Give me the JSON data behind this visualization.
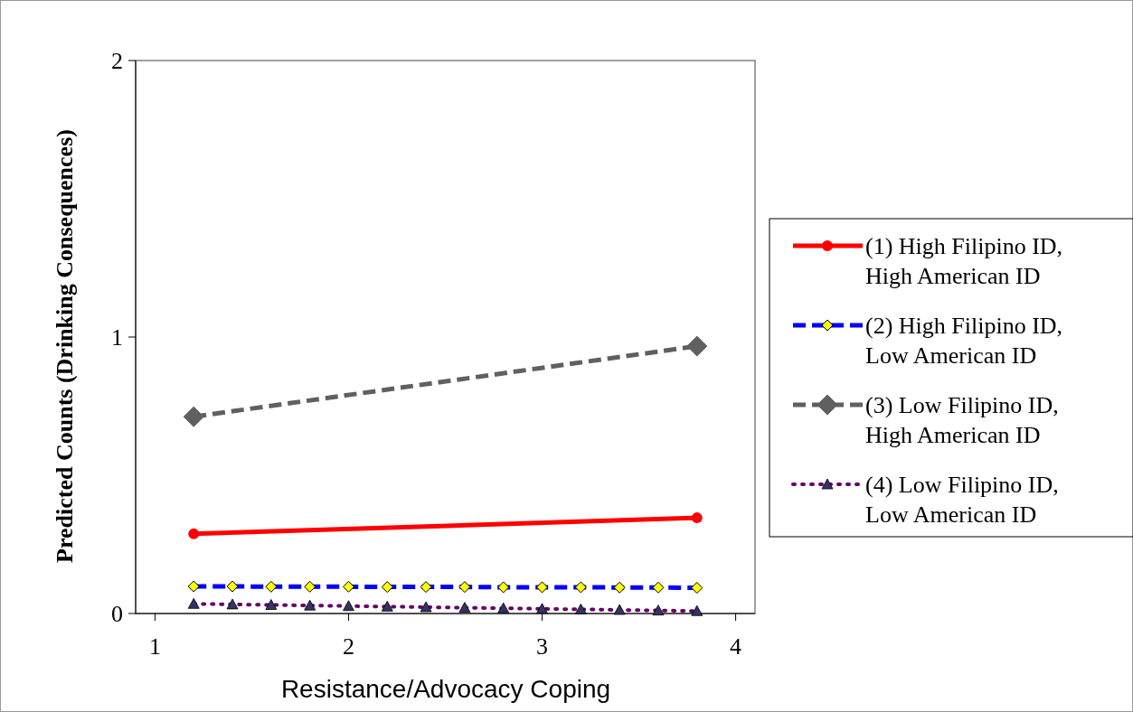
{
  "chart_data": {
    "type": "line",
    "xlabel": "Resistance/Advocacy Coping",
    "ylabel": "Predicted Counts (Drinking Consequences)",
    "xlim": [
      0.9,
      4.1
    ],
    "xticks": [
      1,
      2,
      3,
      4
    ],
    "ylim": [
      0,
      2
    ],
    "yticks": [
      0,
      1,
      2
    ],
    "grid": false,
    "legend": "right",
    "series": [
      {
        "name": "(1) High Filipino ID, High American ID",
        "color": "#ff0000",
        "marker": "circle",
        "line_style": "solid",
        "x": [
          1.2,
          3.8
        ],
        "values": [
          0.288,
          0.346
        ]
      },
      {
        "name": "(2) High Filipino ID, Low American ID",
        "color": "#0000ff",
        "marker": "diamond",
        "line_style": "dashed",
        "x": [
          1.2,
          1.4,
          1.6,
          1.8,
          2.0,
          2.2,
          2.4,
          2.6,
          2.8,
          3.0,
          3.2,
          3.4,
          3.6,
          3.8
        ],
        "values": [
          0.098,
          0.098,
          0.097,
          0.097,
          0.097,
          0.096,
          0.096,
          0.096,
          0.095,
          0.095,
          0.095,
          0.094,
          0.094,
          0.093
        ]
      },
      {
        "name": "(3) Low Filipino ID, High American ID",
        "color": "#606060",
        "marker": "diamond",
        "line_style": "dashed",
        "x": [
          1.2,
          3.8
        ],
        "values": [
          0.712,
          0.967
        ]
      },
      {
        "name": "(4) Low Filipino ID, Low American ID",
        "color": "#660066",
        "marker": "triangle",
        "line_style": "dotted",
        "x": [
          1.2,
          1.4,
          1.6,
          1.8,
          2.0,
          2.2,
          2.4,
          2.6,
          2.8,
          3.0,
          3.2,
          3.4,
          3.6,
          3.8
        ],
        "values": [
          0.035,
          0.033,
          0.031,
          0.029,
          0.027,
          0.025,
          0.023,
          0.021,
          0.019,
          0.017,
          0.015,
          0.013,
          0.011,
          0.009
        ]
      }
    ]
  }
}
